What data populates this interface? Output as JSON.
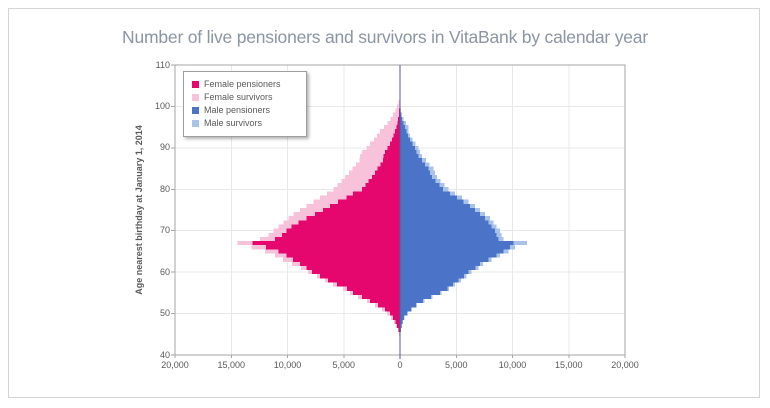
{
  "chart_title": "Number of live pensioners and survivors in VitaBank by calendar year",
  "chart_data": {
    "type": "bar",
    "subtype": "population-pyramid-horizontal-stacked",
    "title": "Number of live pensioners and survivors in VitaBank by calendar year",
    "xlabel": "",
    "ylabel": "Age nearest birthday at January 1, 2014",
    "ylim": [
      40,
      110
    ],
    "y_ticks": [
      40,
      50,
      60,
      70,
      80,
      90,
      100,
      110
    ],
    "x_max_each_side": 20000,
    "x_tick_values": [
      -20000,
      -15000,
      -10000,
      -5000,
      0,
      5000,
      10000,
      15000,
      20000
    ],
    "x_tick_labels": [
      "20,000",
      "15,000",
      "10,000",
      "5,000",
      "0",
      "5,000",
      "10,000",
      "15,000",
      "20,000"
    ],
    "grid": true,
    "legend_position": "top-left-inside",
    "axis_line_color": "#5a5a8f",
    "gridline_color": "#e8e8e8",
    "plot_border_color": "#a6a6a6",
    "ages": [
      45,
      46,
      47,
      48,
      49,
      50,
      51,
      52,
      53,
      54,
      55,
      56,
      57,
      58,
      59,
      60,
      61,
      62,
      63,
      64,
      65,
      66,
      67,
      68,
      69,
      70,
      71,
      72,
      73,
      74,
      75,
      76,
      77,
      78,
      79,
      80,
      81,
      82,
      83,
      84,
      85,
      86,
      87,
      88,
      89,
      90,
      91,
      92,
      93,
      94,
      95,
      96,
      97,
      98,
      99,
      100,
      101
    ],
    "series": [
      {
        "name": "Female pensioners",
        "slug": "female-pensioners",
        "side": "left",
        "stack_order": 1,
        "color": "#e5066e",
        "values": [
          60,
          120,
          250,
          400,
          630,
          890,
          1330,
          1960,
          2670,
          3380,
          4180,
          4710,
          5600,
          6400,
          7110,
          7820,
          8300,
          8890,
          9500,
          10100,
          10800,
          11900,
          13100,
          11100,
          10500,
          10080,
          9630,
          9040,
          8300,
          7560,
          6830,
          6220,
          5500,
          4740,
          4160,
          3400,
          3080,
          2780,
          2500,
          2230,
          1980,
          1740,
          1520,
          1480,
          1330,
          1100,
          900,
          730,
          580,
          440,
          330,
          240,
          170,
          110,
          70,
          40,
          20
        ]
      },
      {
        "name": "Female survivors",
        "slug": "female-survivors",
        "side": "left",
        "stack_order": 2,
        "color": "#f9c2db",
        "values": [
          30,
          60,
          90,
          130,
          170,
          270,
          270,
          260,
          260,
          350,
          260,
          360,
          360,
          270,
          270,
          360,
          500,
          700,
          900,
          1000,
          1200,
          1300,
          1330,
          1330,
          1190,
          1180,
          1190,
          1330,
          1630,
          1920,
          2060,
          2080,
          2200,
          2360,
          2340,
          2530,
          2480,
          2430,
          2380,
          2320,
          2260,
          2180,
          2100,
          2060,
          2070,
          1900,
          1750,
          1600,
          1470,
          1340,
          1100,
          880,
          680,
          500,
          350,
          220,
          120
        ]
      },
      {
        "name": "Male pensioners",
        "slug": "male-pensioners",
        "side": "right",
        "stack_order": 1,
        "color": "#4b73c7",
        "values": [
          40,
          80,
          140,
          200,
          360,
          620,
          980,
          1420,
          2040,
          2760,
          3560,
          4200,
          4700,
          5200,
          5700,
          6100,
          6700,
          7100,
          7850,
          8590,
          9180,
          9780,
          10100,
          8740,
          8590,
          8440,
          8150,
          7850,
          7560,
          7110,
          6670,
          6220,
          5630,
          5060,
          4440,
          3830,
          3500,
          3170,
          2850,
          2680,
          2520,
          2220,
          1940,
          1630,
          1480,
          1330,
          1100,
          890,
          700,
          560,
          440,
          300,
          180,
          90,
          40,
          0,
          0
        ]
      },
      {
        "name": "Male survivors",
        "slug": "male-survivors",
        "side": "right",
        "stack_order": 2,
        "color": "#a9c2e8",
        "values": [
          20,
          30,
          40,
          50,
          60,
          80,
          90,
          100,
          120,
          130,
          150,
          170,
          190,
          210,
          230,
          250,
          270,
          290,
          300,
          300,
          450,
          440,
          1190,
          440,
          450,
          450,
          440,
          450,
          440,
          450,
          440,
          450,
          440,
          450,
          450,
          460,
          450,
          440,
          430,
          430,
          440,
          400,
          360,
          330,
          300,
          300,
          270,
          240,
          210,
          190,
          300,
          220,
          150,
          80,
          40,
          0,
          0
        ]
      }
    ]
  }
}
